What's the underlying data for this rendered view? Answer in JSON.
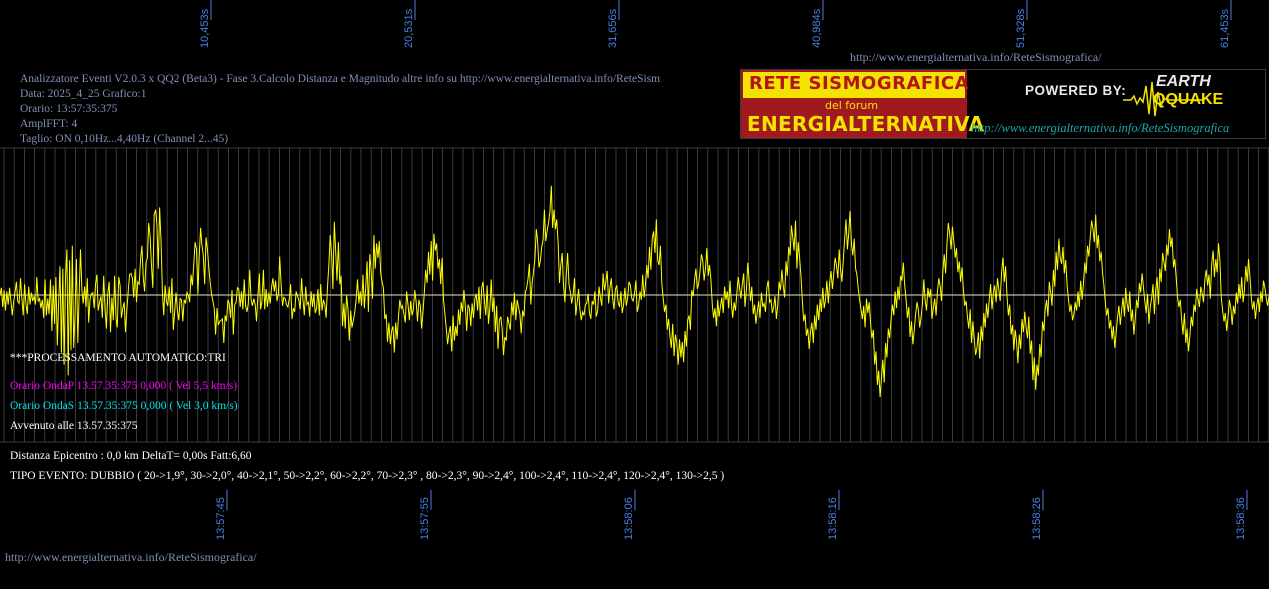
{
  "header": {
    "title_line": "Analizzatore Eventi V2.0.3 x QQ2 (Beta3) - Fase 3.Calcolo Distanza e Magnitudo altre info su http://www.energialternativa.info/ReteSism",
    "data_line": "Data: 2025_4_25 Grafico:1",
    "orario_line": "Orario: 13:57:35:375",
    "ampl_line": "AmplFFT: 4",
    "taglio_line": "Taglio: ON 0,10Hz...4,40Hz        (Channel 2...45)"
  },
  "top_url": "http://www.energialternativa.info/ReteSismografica/",
  "bottom_url": "http://www.energialternativa.info/ReteSismografica/",
  "logo": {
    "line1": "RETE SISMOGRAFICA",
    "line2": "del forum",
    "line3": "ENERGIALTERNATIVA",
    "powered": "POWERED BY:",
    "earth": "EARTH",
    "qquake": "QQUAKE",
    "url": "http://www.energialternativa.info/ReteSismografica"
  },
  "processing": {
    "auto_line": "***PROCESSAMENTO AUTOMATICO:TRI",
    "onda_p": "Orario OndaP 13.57.35:375  0,000 ( Vel 5,5 km/s)",
    "onda_s": "Orario OndaS 13.57.35:375  0,000 ( Vel 3,0 km/s)",
    "avvenuto": "Avvenuto alle 13.57.35:375",
    "distanza": "Distanza Epicentro : 0,0 km DeltaT= 0,00s  Fatt:6,60",
    "tipo_evento": "TIPO EVENTO: DUBBIO ( 20->1,9°, 30->2,0°, 40->2,1°, 50->2,2°, 60->2,2°, 70->2,3° , 80->2,3°, 90->2,4°, 100->2,4°, 110->2,4°, 120->2,4°, 130->2,5 )"
  },
  "colors": {
    "trace": "#ffff00",
    "baseline": "#e8e8c8",
    "onda_p": "#ff00ff",
    "onda_s": "#00e5ee",
    "axis_labels": "#4a7fe0",
    "info_text": "#7f8fb8"
  },
  "chart_data": {
    "type": "line",
    "top_ticks": [
      "10,453s",
      "20,531s",
      "31,656s",
      "40,984s",
      "51,328s",
      "61,453s"
    ],
    "bottom_ticks": [
      "13:57:45",
      "13:57:55",
      "13:58:06",
      "13:58:16",
      "13:58:26",
      "13:58:36"
    ],
    "grid": true,
    "series": [
      {
        "values": [
          0,
          6,
          -10,
          4,
          -13,
          3,
          -8,
          6,
          -5,
          -17,
          -6,
          2,
          11,
          -5,
          -7,
          14,
          -2,
          -17,
          9,
          -7,
          -16,
          7,
          -8,
          2,
          -5,
          -1,
          -8,
          15,
          -5,
          -3,
          -11,
          -4,
          -19,
          13,
          -17,
          -3,
          -16,
          13,
          -30,
          8,
          -24,
          15,
          -42,
          -5,
          24,
          -48,
          22,
          -58,
          14,
          38,
          -67,
          29,
          -46,
          41,
          -44,
          -17,
          30,
          -40,
          -1,
          38,
          4,
          -7,
          7,
          -10,
          14,
          -23,
          -3,
          1,
          2,
          -11,
          9,
          17,
          -13,
          -6,
          -1,
          -19,
          16,
          -13,
          -28,
          1,
          11,
          -31,
          -2,
          -21,
          16,
          -19,
          -27,
          15,
          8,
          -19,
          -11,
          -6,
          -31,
          -12,
          4,
          17,
          18,
          14,
          -2,
          22,
          -6,
          11,
          9,
          29,
          41,
          14,
          3,
          27,
          31,
          60,
          49,
          24,
          6,
          67,
          71,
          59,
          22,
          73,
          46,
          3,
          -17,
          8,
          -6,
          -9,
          7,
          -15,
          14,
          -29,
          -14,
          2,
          -13,
          -21,
          -3,
          -4,
          -22,
          -4,
          -7,
          2,
          0,
          -6,
          17,
          8,
          26,
          44,
          38,
          1,
          32,
          56,
          42,
          33,
          9,
          48,
          38,
          23,
          11,
          1,
          -5,
          -11,
          -33,
          -11,
          -25,
          -22,
          -21,
          -20,
          -40,
          -17,
          -22,
          -4,
          -7,
          -19,
          4,
          -33,
          -8,
          -6,
          6,
          5,
          -10,
          3,
          -12,
          13,
          -9,
          -14,
          -7,
          21,
          -4,
          -9,
          -3,
          -8,
          -22,
          -1,
          18,
          -12,
          -5,
          21,
          -12,
          5,
          -10,
          2,
          -7,
          6,
          14,
          3,
          12,
          -5,
          1,
          32,
          9,
          -9,
          -2,
          -3,
          -8,
          -10,
          -3,
          9,
          -20,
          -11,
          -14,
          3,
          -1,
          -4,
          -12,
          14,
          -3,
          -17,
          7,
          -8,
          -6,
          -18,
          3,
          -10,
          1,
          -15,
          -11,
          5,
          -17,
          9,
          -13,
          -4,
          -8,
          -19,
          7,
          24,
          50,
          34,
          5,
          61,
          36,
          12,
          44,
          9,
          16,
          -26,
          -7,
          -28,
          0,
          -12,
          -38,
          -13,
          -27,
          -21,
          -14,
          -4,
          13,
          -7,
          3,
          -9,
          17,
          -11,
          6,
          28,
          -14,
          34,
          21,
          -3,
          50,
          22,
          43,
          31,
          45,
          18,
          11,
          6,
          -20,
          -16,
          -39,
          -23,
          -41,
          -30,
          -26,
          -48,
          -23,
          -37,
          -19,
          -4,
          -11,
          -9,
          -16,
          -23,
          3,
          -8,
          -21,
          -5,
          -17,
          -12,
          4,
          -6,
          -22,
          -4,
          -9,
          -28,
          -14,
          3,
          21,
          10,
          36,
          17,
          45,
          12,
          51,
          37,
          43,
          22,
          30,
          9,
          31,
          -4,
          -15,
          -27,
          -41,
          -32,
          -26,
          -47,
          -17,
          -38,
          -26,
          -34,
          -12,
          -25,
          -6,
          -14,
          4,
          -9,
          -30,
          -8,
          -11,
          -26,
          -7,
          -19,
          -3,
          1,
          -13,
          7,
          -20,
          6,
          11,
          -5,
          -17,
          8,
          -24,
          -10,
          13,
          -14,
          -2,
          -31,
          -9,
          -45,
          -21,
          -18,
          -28,
          -50,
          -35,
          -38,
          -18,
          -24,
          -29,
          -6,
          -17,
          2,
          -21,
          -4,
          -10,
          -16,
          -32,
          -13,
          -18,
          2,
          6,
          14,
          26,
          -8,
          11,
          19,
          30,
          55,
          45,
          23,
          28,
          40,
          46,
          71,
          45,
          54,
          60,
          69,
          91,
          56,
          71,
          55,
          63,
          44,
          10,
          25,
          35,
          8,
          -6,
          17,
          35,
          9,
          2,
          -7,
          0,
          14,
          -17,
          -6,
          5,
          -12,
          -21,
          -14,
          -17,
          -8,
          -7,
          1,
          -15,
          -20,
          -5,
          -8,
          3,
          -18,
          -13,
          7,
          -2,
          -9,
          18,
          4,
          11,
          20,
          -7,
          6,
          14,
          -3,
          -12,
          5,
          8,
          -6,
          -10,
          3,
          -15,
          -8,
          6,
          -9,
          -2,
          11,
          8,
          -3,
          -5,
          1,
          12,
          -14,
          -9,
          3,
          -4,
          17,
          -2,
          8,
          25,
          14,
          40,
          21,
          47,
          53,
          35,
          63,
          29,
          25,
          41,
          10,
          -3,
          -14,
          -8,
          -29,
          -20,
          -35,
          -44,
          -24,
          -51,
          -33,
          -40,
          -58,
          -37,
          -52,
          -39,
          -56,
          -30,
          -43,
          -21,
          -17,
          -29,
          4,
          -1,
          12,
          22,
          5,
          9,
          20,
          34,
          29,
          12,
          22,
          39,
          16,
          25,
          13,
          -8,
          -19,
          -11,
          -26,
          -4,
          -18,
          -9,
          -2,
          -15,
          7,
          -4,
          3,
          -11,
          12,
          -7,
          -19,
          -6,
          -13,
          1,
          15,
          6,
          -3,
          9,
          18,
          -10,
          4,
          27,
          12,
          -5,
          7,
          -16,
          -8,
          -24,
          -14,
          -5,
          -19,
          2,
          -10,
          -7,
          -14,
          6,
          12,
          -6,
          -4,
          -15,
          -10,
          -1,
          -20,
          -8,
          11,
          4,
          21,
          8,
          -2,
          28,
          16,
          40,
          33,
          58,
          48,
          37,
          62,
          22,
          44,
          31,
          15,
          -4,
          -22,
          -16,
          -34,
          -28,
          -45,
          -31,
          -23,
          -40,
          -17,
          -29,
          -8,
          -21,
          -3,
          -14,
          6,
          -11,
          -4,
          12,
          -7,
          10,
          20,
          5,
          17,
          31,
          25,
          14,
          38,
          22,
          11,
          29,
          46,
          63,
          38,
          51,
          70,
          42,
          33,
          47,
          22,
          17,
          5,
          -4,
          -12,
          -20,
          -9,
          -27,
          -3,
          -15,
          -6,
          -24,
          -36,
          -29,
          -58,
          -47,
          -75,
          -63,
          -85,
          -69,
          -54,
          -73,
          -40,
          -52,
          -28,
          -36,
          -21,
          -8,
          -17,
          3,
          -11,
          7,
          -4,
          16,
          12,
          27,
          8,
          -3,
          -19,
          -10,
          -35,
          -22,
          -41,
          -30,
          -16,
          -6,
          -12,
          -27,
          -19,
          -8,
          13,
          -4,
          -13,
          6,
          -2,
          5,
          -20,
          -11,
          -3,
          -17,
          2,
          14,
          7,
          -5,
          20,
          34,
          18,
          43,
          60,
          51,
          38,
          57,
          45,
          31,
          39,
          19,
          28,
          11,
          23,
          6,
          -9,
          -5,
          -18,
          -28,
          -12,
          -40,
          -22,
          -37,
          -50,
          -44,
          -31,
          -53,
          -26,
          -38,
          -15,
          -27,
          -7,
          -19,
          -3,
          9,
          -12,
          2,
          8,
          -6,
          14,
          5,
          -5,
          19,
          31,
          11,
          24,
          -1,
          -17,
          -8,
          -33,
          -25,
          -46,
          -29,
          -39,
          -57,
          -33,
          -45,
          -20,
          -31,
          -14,
          -27,
          -36,
          -18,
          -49,
          -38,
          -71,
          -52,
          -79,
          -58,
          -67,
          -41,
          -52,
          -22,
          -30,
          -12,
          -4,
          -18,
          11,
          2,
          -9,
          21,
          7,
          36,
          21,
          47,
          31,
          26,
          40,
          18,
          29,
          8,
          -3,
          -14,
          -8,
          -21,
          -16,
          -6,
          -13,
          3,
          -10,
          12,
          -4,
          9,
          27,
          18,
          41,
          32,
          48,
          62,
          55,
          44,
          67,
          39,
          50,
          28,
          36,
          19,
          8,
          -6,
          -17,
          -11,
          -28,
          -21,
          -37,
          -26,
          -44,
          -31,
          -19,
          -9,
          -25,
          -13,
          -2,
          -18,
          6,
          -7,
          -14,
          3,
          -22,
          -12,
          -33,
          -19,
          -4,
          -11,
          10,
          2,
          18,
          6,
          -5,
          -15,
          1,
          -24,
          -10,
          -2,
          9,
          -16,
          4,
          15,
          -8,
          22,
          11,
          35,
          28,
          20,
          42,
          33,
          55,
          40,
          48,
          23,
          30,
          14,
          -2,
          -10,
          -4,
          -21,
          -33,
          -15,
          -40,
          -28,
          -47,
          -34,
          -18,
          -26,
          -8,
          -14,
          5,
          -3,
          -10,
          7,
          2,
          -6,
          13,
          21,
          8,
          17,
          -3,
          26,
          37,
          15,
          30,
          19,
          43,
          29,
          -1,
          -13,
          -22,
          -15,
          -30,
          -18,
          -4,
          -11,
          -25,
          -9,
          -16,
          2,
          -7,
          9,
          -3,
          15,
          -6,
          4,
          24,
          11,
          30,
          16,
          -2,
          -12,
          -5,
          -20,
          -9,
          -2,
          -14,
          3,
          -6,
          12,
          6,
          -3,
          -9,
          -1
        ],
        "note": "waveform amplitude samples, relative units, baseline = 0"
      }
    ]
  }
}
